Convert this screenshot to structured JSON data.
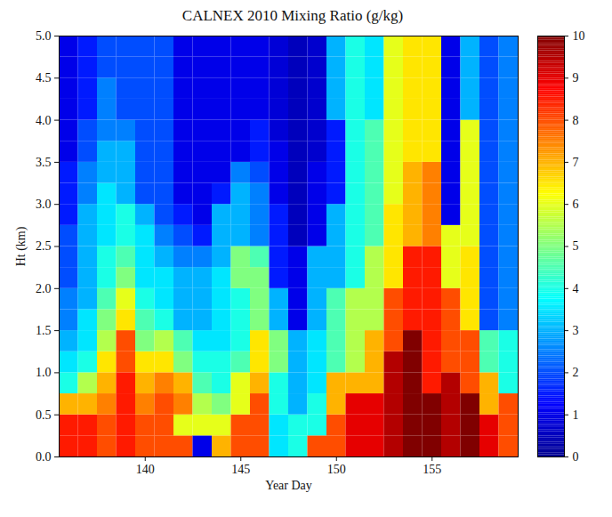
{
  "chart_data": {
    "type": "heatmap",
    "title": "CALNEX 2010 Mixing Ratio (g/kg)",
    "x_label": "Year Day",
    "y_label": "Ht (km)",
    "x": [
      136,
      137,
      138,
      139,
      140,
      141,
      142,
      143,
      144,
      145,
      146,
      147,
      148,
      149,
      150,
      151,
      152,
      153,
      154,
      155,
      156,
      157,
      158,
      159
    ],
    "y": [
      0.125,
      0.375,
      0.625,
      0.875,
      1.125,
      1.375,
      1.625,
      1.875,
      2.125,
      2.375,
      2.625,
      2.875,
      3.125,
      3.375,
      3.625,
      3.875,
      4.125,
      4.375,
      4.625,
      4.875
    ],
    "values": [
      [
        8.5,
        8.5,
        7,
        4,
        3.5,
        3,
        2.5,
        2.5,
        2,
        2,
        2,
        1.5,
        1.5,
        1.5,
        1,
        1,
        1,
        1,
        1,
        1
      ],
      [
        8.5,
        8.5,
        7,
        5.5,
        4,
        3.5,
        3.5,
        3,
        3,
        3,
        3,
        3,
        2.5,
        2.5,
        2,
        2,
        1.5,
        1.5,
        1.5,
        1.5
      ],
      [
        8,
        8,
        7.5,
        7,
        6.5,
        5.5,
        5,
        4.5,
        4,
        4,
        3.5,
        3.5,
        3.5,
        3,
        3,
        2.5,
        2.5,
        2.5,
        2,
        2
      ],
      [
        8.5,
        8.5,
        8.5,
        8.5,
        8,
        8,
        6.5,
        6,
        5,
        4.5,
        4,
        4,
        3,
        3,
        3,
        2.5,
        2,
        2,
        2,
        2
      ],
      [
        8,
        8,
        7.5,
        7,
        6.5,
        5,
        4.5,
        4,
        3.5,
        3.5,
        3.5,
        3,
        2,
        2,
        2,
        2,
        2,
        2,
        2,
        2
      ],
      [
        8,
        8,
        8,
        7.5,
        6.5,
        5.5,
        4,
        3.5,
        3.5,
        3,
        2.5,
        2,
        2,
        2,
        2,
        2,
        2,
        2,
        2,
        2
      ],
      [
        8,
        6,
        7.5,
        7,
        5,
        4.5,
        3,
        3,
        3,
        2.5,
        2,
        1.5,
        1,
        1,
        1,
        1,
        1,
        1,
        1,
        1
      ],
      [
        1,
        6,
        5.5,
        4.5,
        4,
        3.5,
        3,
        3,
        3,
        2.5,
        1.5,
        1,
        1,
        1,
        1,
        1,
        1,
        1,
        1,
        1
      ],
      [
        7,
        6,
        5,
        4,
        4,
        3.5,
        3.5,
        3.5,
        3.5,
        3,
        3,
        3,
        1.5,
        1,
        1,
        1,
        1,
        1,
        1,
        1
      ],
      [
        8,
        8,
        6,
        6,
        4.5,
        4,
        4,
        4,
        5,
        5,
        3,
        3,
        3,
        2.5,
        1,
        1,
        1,
        1,
        1,
        1
      ],
      [
        8,
        8,
        8,
        7,
        6.5,
        6.5,
        5,
        5,
        5,
        4.5,
        2.5,
        2.5,
        2.5,
        2,
        1.5,
        1.5,
        1,
        1,
        1,
        1
      ],
      [
        3.5,
        3.5,
        4,
        4,
        5,
        5,
        3,
        3,
        1.5,
        1.5,
        1.5,
        1.5,
        1,
        1,
        1,
        0.8,
        0.8,
        0.8,
        0.8,
        0.8
      ],
      [
        4,
        4,
        3,
        3,
        3,
        3,
        1,
        1,
        1,
        1,
        0.5,
        0.5,
        0.5,
        0.5,
        0.5,
        0.5,
        0.5,
        0.5,
        0.5,
        0.5
      ],
      [
        8,
        4,
        4,
        3.5,
        3.5,
        3.5,
        3,
        3,
        3,
        3,
        1,
        1,
        1,
        1,
        0.7,
        0.7,
        0.7,
        0.7,
        0.7,
        0.7
      ],
      [
        8,
        8,
        7,
        7,
        4.5,
        4.5,
        4.5,
        4.5,
        3,
        3,
        3,
        3,
        1.5,
        1.5,
        1.5,
        1.5,
        3,
        3,
        3,
        3
      ],
      [
        9,
        9,
        9,
        7,
        5.5,
        5.5,
        5.5,
        5.5,
        4,
        4,
        4,
        4,
        4,
        4,
        4,
        4,
        4,
        4,
        4,
        4
      ],
      [
        9,
        9,
        9,
        7,
        7,
        7,
        5.5,
        5.5,
        5.5,
        5.5,
        4.5,
        4.5,
        4.5,
        4.5,
        4.5,
        4.5,
        3.5,
        3.5,
        3.5,
        3.5
      ],
      [
        9.5,
        9.5,
        9.5,
        9.5,
        9.5,
        8,
        8,
        8,
        6.5,
        6.5,
        6.5,
        6.5,
        6,
        6,
        6,
        6,
        6,
        6,
        6,
        6
      ],
      [
        10,
        10,
        10,
        10,
        10,
        10,
        8.5,
        8.5,
        8.5,
        8.5,
        7,
        7,
        7,
        7,
        6.5,
        6.5,
        6.5,
        6.5,
        6.5,
        6.5
      ],
      [
        10,
        10,
        10,
        8.5,
        8.5,
        8.5,
        8.5,
        8.5,
        8.5,
        8.5,
        7.5,
        7.5,
        7.5,
        7.5,
        6.5,
        6.5,
        6.5,
        6.5,
        6.5,
        6.5
      ],
      [
        9.5,
        9.5,
        9.5,
        9.5,
        8,
        8,
        8,
        8,
        6,
        6,
        6,
        1,
        1,
        1,
        1,
        1,
        1,
        1,
        1,
        1
      ],
      [
        10,
        10,
        10,
        8,
        8,
        8,
        6.5,
        6.5,
        6.5,
        6.5,
        6,
        6,
        6,
        6,
        6,
        6,
        3,
        3,
        3,
        3
      ],
      [
        9,
        9,
        7,
        7,
        4.5,
        4.5,
        2,
        2,
        2,
        2,
        2,
        2,
        2,
        2,
        2,
        2,
        2,
        2,
        2,
        2
      ],
      [
        8,
        8,
        8,
        4,
        4,
        4,
        2.5,
        2.5,
        2.5,
        2.5,
        2.5,
        2.5,
        2.5,
        2.5,
        2.5,
        2.5,
        2.5,
        2.5,
        2.5,
        2.5
      ]
    ],
    "xlim": [
      135.5,
      159.5
    ],
    "xticks": [
      140,
      145,
      150,
      155
    ],
    "ylim": [
      0,
      5
    ],
    "yticks": [
      0,
      0.5,
      1,
      1.5,
      2,
      2.5,
      3,
      3.5,
      4,
      4.5,
      5
    ],
    "colorbar": {
      "range": [
        0,
        10
      ],
      "ticks": [
        0,
        1,
        2,
        3,
        4,
        5,
        6,
        7,
        8,
        9,
        10
      ]
    }
  }
}
